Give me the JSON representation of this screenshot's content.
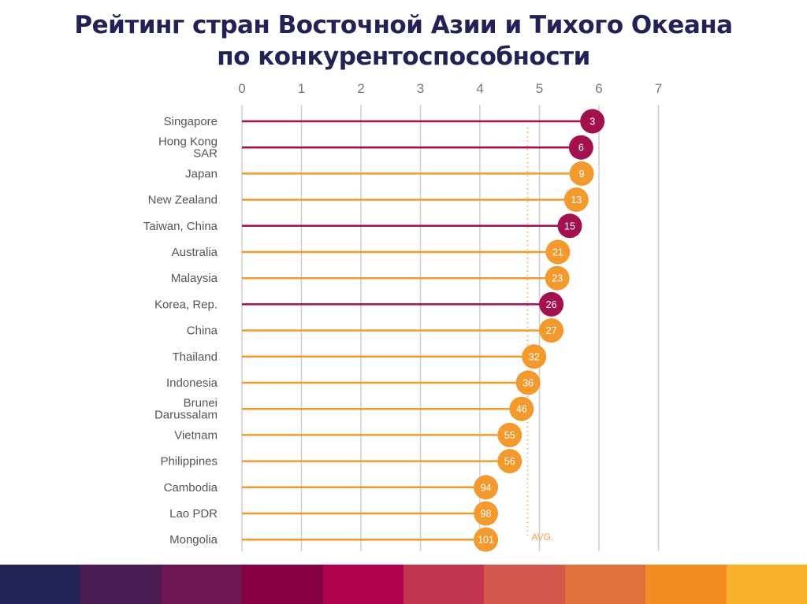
{
  "title_line1": "Рейтинг стран Восточной Азии и Тихого Океана",
  "title_line2": "по конкурентоспособности",
  "colors": {
    "magenta": "#a3104f",
    "orange": "#f39a2f",
    "grid": "#cfcfcf",
    "avg": "#f0a050",
    "label": "#555555"
  },
  "strip_colors": [
    "#222255",
    "#4b1c54",
    "#6f1552",
    "#870042",
    "#b1004c",
    "#c23550",
    "#d4584c",
    "#e2703e",
    "#f48c22",
    "#f9b02c"
  ],
  "chart_data": {
    "type": "lollipop",
    "title": "Рейтинг стран Восточной Азии и Тихого Океана по конкурентоспособности",
    "xlim": [
      0,
      7
    ],
    "xticks": [
      "0",
      "1",
      "2",
      "3",
      "4",
      "5",
      "6",
      "7"
    ],
    "grid": true,
    "avg": {
      "value": 4.8,
      "label": "AVG."
    },
    "points": [
      {
        "country": "Singapore",
        "value": 5.89,
        "rank": "3",
        "group": "magenta"
      },
      {
        "country": "Hong Kong SAR",
        "lines": [
          "Hong Kong",
          "SAR"
        ],
        "value": 5.7,
        "rank": "6",
        "group": "magenta"
      },
      {
        "country": "Japan",
        "value": 5.71,
        "rank": "9",
        "group": "orange"
      },
      {
        "country": "New Zealand",
        "value": 5.62,
        "rank": "13",
        "group": "orange"
      },
      {
        "country": "Taiwan, China",
        "value": 5.51,
        "rank": "15",
        "group": "magenta"
      },
      {
        "country": "Australia",
        "value": 5.31,
        "rank": "21",
        "group": "orange"
      },
      {
        "country": "Malaysia",
        "value": 5.3,
        "rank": "23",
        "group": "orange"
      },
      {
        "country": "Korea, Rep.",
        "value": 5.2,
        "rank": "26",
        "group": "magenta"
      },
      {
        "country": "China",
        "value": 5.2,
        "rank": "27",
        "group": "orange"
      },
      {
        "country": "Thailand",
        "value": 4.91,
        "rank": "32",
        "group": "orange"
      },
      {
        "country": "Indonesia",
        "value": 4.81,
        "rank": "36",
        "group": "orange"
      },
      {
        "country": "Brunei Darussalam",
        "lines": [
          "Brunei",
          "Darussalam"
        ],
        "value": 4.7,
        "rank": "46",
        "group": "orange"
      },
      {
        "country": "Vietnam",
        "value": 4.5,
        "rank": "55",
        "group": "orange"
      },
      {
        "country": "Philippines",
        "value": 4.5,
        "rank": "56",
        "group": "orange"
      },
      {
        "country": "Cambodia",
        "value": 4.1,
        "rank": "94",
        "group": "orange"
      },
      {
        "country": "Lao PDR",
        "value": 4.1,
        "rank": "98",
        "group": "orange"
      },
      {
        "country": "Mongolia",
        "value": 4.1,
        "rank": "101",
        "group": "orange"
      }
    ]
  }
}
